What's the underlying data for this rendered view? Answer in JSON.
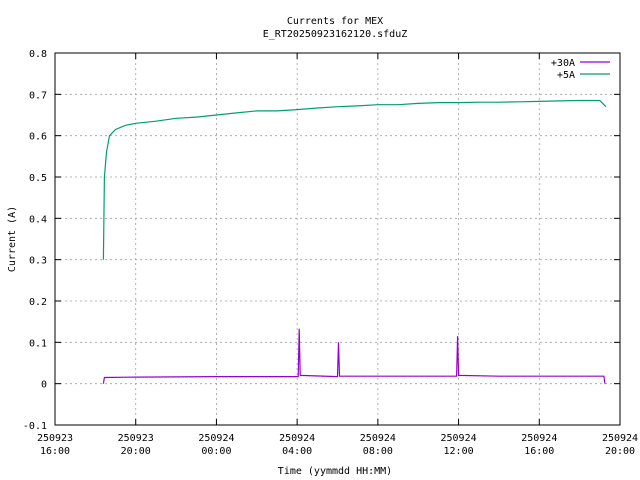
{
  "chart_data": {
    "type": "line",
    "title": "Currents for MEX",
    "subtitle": "E_RT20250923162120.sfduZ",
    "xlabel": "Time (yymmdd HH:MM)",
    "ylabel": "Current (A)",
    "x_range_hours": [
      16,
      44
    ],
    "ylim": [
      -0.1,
      0.8
    ],
    "grid": true,
    "legend_position": "top-right",
    "x_ticks": [
      {
        "hour": 16,
        "date": "250923",
        "time": "16:00"
      },
      {
        "hour": 20,
        "date": "250923",
        "time": "20:00"
      },
      {
        "hour": 24,
        "date": "250924",
        "time": "00:00"
      },
      {
        "hour": 28,
        "date": "250924",
        "time": "04:00"
      },
      {
        "hour": 32,
        "date": "250924",
        "time": "08:00"
      },
      {
        "hour": 36,
        "date": "250924",
        "time": "12:00"
      },
      {
        "hour": 40,
        "date": "250924",
        "time": "16:00"
      },
      {
        "hour": 44,
        "date": "250924",
        "time": "20:00"
      }
    ],
    "y_ticks": [
      "-0.1",
      "0",
      "0.1",
      "0.2",
      "0.3",
      "0.4",
      "0.5",
      "0.6",
      "0.7",
      "0.8"
    ],
    "series": [
      {
        "name": "+30A",
        "color": "#9400d3",
        "points": [
          [
            18.4,
            0.0
          ],
          [
            18.45,
            0.015
          ],
          [
            20,
            0.016
          ],
          [
            24,
            0.017
          ],
          [
            28,
            0.017
          ],
          [
            28.05,
            0.017
          ],
          [
            28.1,
            0.133
          ],
          [
            28.15,
            0.02
          ],
          [
            30,
            0.017
          ],
          [
            30.05,
            0.1
          ],
          [
            30.1,
            0.018
          ],
          [
            34,
            0.018
          ],
          [
            35.9,
            0.018
          ],
          [
            35.95,
            0.115
          ],
          [
            36.0,
            0.02
          ],
          [
            38,
            0.018
          ],
          [
            42,
            0.018
          ],
          [
            43.2,
            0.018
          ],
          [
            43.25,
            0.0
          ]
        ]
      },
      {
        "name": "+5A",
        "color": "#009e73",
        "points": [
          [
            18.4,
            0.3
          ],
          [
            18.45,
            0.5
          ],
          [
            18.55,
            0.56
          ],
          [
            18.7,
            0.6
          ],
          [
            19,
            0.615
          ],
          [
            19.5,
            0.625
          ],
          [
            20,
            0.63
          ],
          [
            21,
            0.635
          ],
          [
            22,
            0.642
          ],
          [
            23,
            0.645
          ],
          [
            24,
            0.65
          ],
          [
            25,
            0.655
          ],
          [
            26,
            0.66
          ],
          [
            27,
            0.66
          ],
          [
            28,
            0.663
          ],
          [
            29,
            0.667
          ],
          [
            30,
            0.67
          ],
          [
            31,
            0.672
          ],
          [
            32,
            0.675
          ],
          [
            33,
            0.675
          ],
          [
            34,
            0.678
          ],
          [
            35,
            0.68
          ],
          [
            36,
            0.68
          ],
          [
            37,
            0.681
          ],
          [
            38,
            0.681
          ],
          [
            39,
            0.682
          ],
          [
            40,
            0.683
          ],
          [
            41,
            0.684
          ],
          [
            42,
            0.685
          ],
          [
            43,
            0.685
          ],
          [
            43.3,
            0.67
          ]
        ]
      }
    ]
  }
}
